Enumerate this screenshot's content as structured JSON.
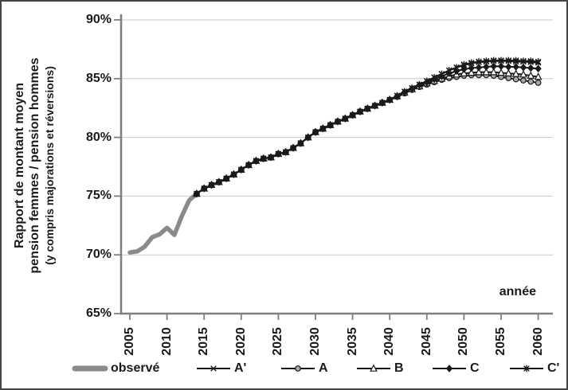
{
  "chart_data": {
    "type": "line",
    "title": "",
    "ylabel_line1": "Rapport de montant moyen",
    "ylabel_line2": "pension femmes / pension hommes",
    "ylabel_line3": "(y compris majorations et réversions)",
    "xlabel": "année",
    "ylim": [
      65,
      90
    ],
    "xlim": [
      2004,
      2062
    ],
    "grid": "horizontal",
    "legend_position": "bottom",
    "axis_color": "#7f7f7f",
    "grid_color": "#c9c9c9",
    "y_ticks": [
      90,
      85,
      80,
      75,
      70,
      65
    ],
    "y_tick_labels": [
      "90%",
      "85%",
      "80%",
      "75%",
      "70%",
      "65%"
    ],
    "x_ticks": [
      2005,
      2010,
      2015,
      2020,
      2025,
      2030,
      2035,
      2040,
      2045,
      2050,
      2055,
      2060
    ],
    "x_tick_labels": [
      "2005",
      "2010",
      "2015",
      "2020",
      "2025",
      "2030",
      "2035",
      "2040",
      "2045",
      "2050",
      "2055",
      "2060"
    ],
    "series": [
      {
        "name": "observé",
        "slug": "observe",
        "marker": "none",
        "line_color": "#8a8a8a",
        "line_width": 5.5,
        "x": [
          2005,
          2006,
          2007,
          2008,
          2009,
          2010,
          2011,
          2012,
          2013,
          2014
        ],
        "values": [
          70.2,
          70.3,
          70.7,
          71.5,
          71.75,
          72.3,
          71.7,
          73.3,
          74.65,
          75.2
        ]
      },
      {
        "name": "A'",
        "slug": "a-prime",
        "marker": "x",
        "line_color": "#1a1a1a",
        "line_width": 2.1,
        "x": [
          2014,
          2015,
          2016,
          2017,
          2018,
          2019,
          2020,
          2021,
          2022,
          2023,
          2024,
          2025,
          2026,
          2027,
          2028,
          2029,
          2030,
          2031,
          2032,
          2033,
          2034,
          2035,
          2036,
          2037,
          2038,
          2039,
          2040,
          2041,
          2042,
          2043,
          2044,
          2045,
          2046,
          2047,
          2048,
          2049,
          2050,
          2051,
          2052,
          2053,
          2054,
          2055,
          2056,
          2057,
          2058,
          2059,
          2060
        ],
        "values": [
          75.2,
          75.65,
          75.95,
          76.2,
          76.5,
          76.85,
          77.25,
          77.65,
          78.0,
          78.2,
          78.3,
          78.6,
          78.75,
          79.1,
          79.5,
          80.0,
          80.45,
          80.75,
          81.05,
          81.35,
          81.6,
          81.9,
          82.2,
          82.45,
          82.7,
          82.95,
          83.2,
          83.55,
          83.9,
          84.2,
          84.5,
          84.8,
          85.1,
          85.4,
          85.7,
          85.95,
          86.15,
          86.3,
          86.4,
          86.45,
          86.5,
          86.5,
          86.5,
          86.45,
          86.45,
          86.4,
          86.35
        ]
      },
      {
        "name": "A",
        "slug": "a",
        "marker": "circle",
        "line_color": "#1a1a1a",
        "line_width": 2.1,
        "x": [
          2014,
          2015,
          2016,
          2017,
          2018,
          2019,
          2020,
          2021,
          2022,
          2023,
          2024,
          2025,
          2026,
          2027,
          2028,
          2029,
          2030,
          2031,
          2032,
          2033,
          2034,
          2035,
          2036,
          2037,
          2038,
          2039,
          2040,
          2041,
          2042,
          2043,
          2044,
          2045,
          2046,
          2047,
          2048,
          2049,
          2050,
          2051,
          2052,
          2053,
          2054,
          2055,
          2056,
          2057,
          2058,
          2059,
          2060
        ],
        "values": [
          75.2,
          75.65,
          75.95,
          76.2,
          76.5,
          76.85,
          77.25,
          77.65,
          78.0,
          78.2,
          78.3,
          78.6,
          78.75,
          79.1,
          79.5,
          80.0,
          80.45,
          80.75,
          81.05,
          81.35,
          81.6,
          81.9,
          82.2,
          82.45,
          82.7,
          82.95,
          83.2,
          83.45,
          83.75,
          84.05,
          84.3,
          84.5,
          84.7,
          84.9,
          85.05,
          85.15,
          85.25,
          85.3,
          85.3,
          85.3,
          85.25,
          85.15,
          85.05,
          84.95,
          84.85,
          84.75,
          84.65
        ]
      },
      {
        "name": "B",
        "slug": "b",
        "marker": "triangle",
        "line_color": "#1a1a1a",
        "line_width": 2.1,
        "x": [
          2014,
          2015,
          2016,
          2017,
          2018,
          2019,
          2020,
          2021,
          2022,
          2023,
          2024,
          2025,
          2026,
          2027,
          2028,
          2029,
          2030,
          2031,
          2032,
          2033,
          2034,
          2035,
          2036,
          2037,
          2038,
          2039,
          2040,
          2041,
          2042,
          2043,
          2044,
          2045,
          2046,
          2047,
          2048,
          2049,
          2050,
          2051,
          2052,
          2053,
          2054,
          2055,
          2056,
          2057,
          2058,
          2059,
          2060
        ],
        "values": [
          75.2,
          75.65,
          75.95,
          76.2,
          76.5,
          76.85,
          77.25,
          77.65,
          78.0,
          78.2,
          78.3,
          78.6,
          78.75,
          79.1,
          79.5,
          80.0,
          80.45,
          80.75,
          81.05,
          81.35,
          81.6,
          81.9,
          82.2,
          82.45,
          82.7,
          82.95,
          83.2,
          83.5,
          83.8,
          84.1,
          84.35,
          84.6,
          84.8,
          85.0,
          85.2,
          85.35,
          85.45,
          85.5,
          85.55,
          85.55,
          85.55,
          85.5,
          85.45,
          85.4,
          85.35,
          85.25,
          85.15
        ]
      },
      {
        "name": "C",
        "slug": "c",
        "marker": "diamond",
        "line_color": "#1a1a1a",
        "line_width": 2.1,
        "x": [
          2014,
          2015,
          2016,
          2017,
          2018,
          2019,
          2020,
          2021,
          2022,
          2023,
          2024,
          2025,
          2026,
          2027,
          2028,
          2029,
          2030,
          2031,
          2032,
          2033,
          2034,
          2035,
          2036,
          2037,
          2038,
          2039,
          2040,
          2041,
          2042,
          2043,
          2044,
          2045,
          2046,
          2047,
          2048,
          2049,
          2050,
          2051,
          2052,
          2053,
          2054,
          2055,
          2056,
          2057,
          2058,
          2059,
          2060
        ],
        "values": [
          75.2,
          75.65,
          75.95,
          76.2,
          76.5,
          76.85,
          77.25,
          77.65,
          78.0,
          78.2,
          78.3,
          78.6,
          78.75,
          79.1,
          79.5,
          80.0,
          80.45,
          80.75,
          81.05,
          81.35,
          81.6,
          81.9,
          82.2,
          82.45,
          82.7,
          82.95,
          83.2,
          83.5,
          83.85,
          84.15,
          84.45,
          84.7,
          84.95,
          85.2,
          85.45,
          85.65,
          85.8,
          85.9,
          85.95,
          86.0,
          86.05,
          86.05,
          86.0,
          86.0,
          85.95,
          85.9,
          85.85
        ]
      },
      {
        "name": "C'",
        "slug": "c-prime",
        "marker": "asterisk",
        "line_color": "#1a1a1a",
        "line_width": 2.1,
        "x": [
          2014,
          2015,
          2016,
          2017,
          2018,
          2019,
          2020,
          2021,
          2022,
          2023,
          2024,
          2025,
          2026,
          2027,
          2028,
          2029,
          2030,
          2031,
          2032,
          2033,
          2034,
          2035,
          2036,
          2037,
          2038,
          2039,
          2040,
          2041,
          2042,
          2043,
          2044,
          2045,
          2046,
          2047,
          2048,
          2049,
          2050,
          2051,
          2052,
          2053,
          2054,
          2055,
          2056,
          2057,
          2058,
          2059,
          2060
        ],
        "values": [
          75.2,
          75.65,
          75.95,
          76.2,
          76.5,
          76.85,
          77.25,
          77.65,
          78.0,
          78.2,
          78.3,
          78.6,
          78.75,
          79.1,
          79.5,
          80.0,
          80.45,
          80.75,
          81.05,
          81.35,
          81.6,
          81.9,
          82.2,
          82.45,
          82.7,
          82.95,
          83.2,
          83.55,
          83.9,
          84.2,
          84.5,
          84.8,
          85.1,
          85.4,
          85.7,
          85.95,
          86.2,
          86.35,
          86.45,
          86.5,
          86.55,
          86.55,
          86.55,
          86.55,
          86.5,
          86.5,
          86.45
        ]
      }
    ]
  }
}
